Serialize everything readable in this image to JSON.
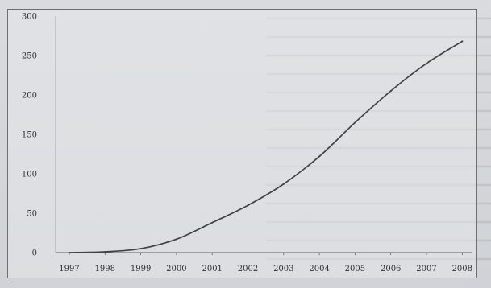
{
  "chart_data": {
    "type": "line",
    "title": "",
    "xlabel": "",
    "ylabel": "",
    "categories": [
      "1997",
      "1998",
      "1999",
      "2000",
      "2001",
      "2002",
      "2003",
      "2004",
      "2005",
      "2006",
      "2007",
      "2008"
    ],
    "series": [
      {
        "values": [
          0,
          1,
          5,
          17,
          38,
          60,
          87,
          122,
          165,
          205,
          240,
          268
        ],
        "color": "#3f4246"
      }
    ],
    "yticks": [
      "0",
      "50",
      "100",
      "150",
      "200",
      "250",
      "300"
    ],
    "ylim": [
      0,
      300
    ],
    "grid": false,
    "legend": "none"
  }
}
